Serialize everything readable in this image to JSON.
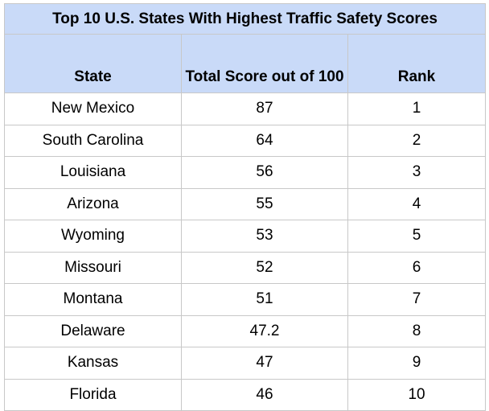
{
  "chart_data": {
    "type": "table",
    "title": "Top 10 U.S. States With Highest Traffic Safety Scores",
    "columns": [
      "State",
      "Total Score out of 100",
      "Rank"
    ],
    "rows": [
      [
        "New Mexico",
        "87",
        "1"
      ],
      [
        "South Carolina",
        "64",
        "2"
      ],
      [
        "Louisiana",
        "56",
        "3"
      ],
      [
        "Arizona",
        "55",
        "4"
      ],
      [
        "Wyoming",
        "53",
        "5"
      ],
      [
        "Missouri",
        "52",
        "6"
      ],
      [
        "Montana",
        "51",
        "7"
      ],
      [
        "Delaware",
        "47.2",
        "8"
      ],
      [
        "Kansas",
        "47",
        "9"
      ],
      [
        "Florida",
        "46",
        "10"
      ]
    ],
    "header_color": "#c9daf8",
    "grid": true
  }
}
